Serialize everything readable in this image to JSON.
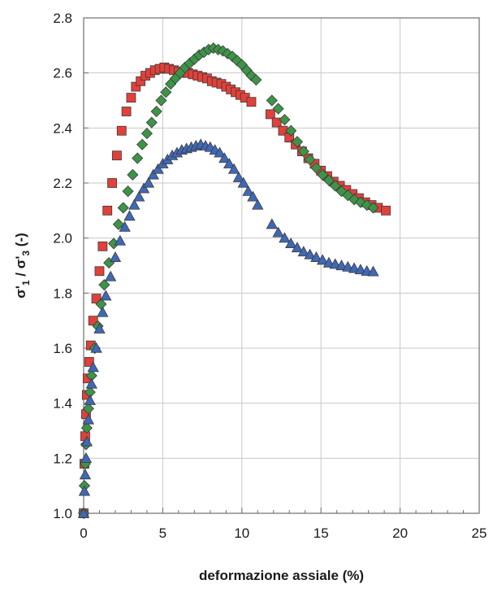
{
  "chart_data": {
    "type": "scatter",
    "title": "",
    "xlabel": "deformazione assiale (%)",
    "ylabel_parts": [
      "σ'",
      "1",
      " / σ'",
      "3",
      " (-)"
    ],
    "xlim": [
      0,
      25
    ],
    "ylim": [
      1.0,
      2.8
    ],
    "x_ticks": [
      0,
      5,
      10,
      15,
      20,
      25
    ],
    "x_tick_labels": [
      "0",
      "5",
      "10",
      "15",
      "20",
      "25"
    ],
    "y_ticks": [
      1.0,
      1.2,
      1.4,
      1.6,
      1.8,
      2.0,
      2.2,
      2.4,
      2.6,
      2.8
    ],
    "y_tick_labels": [
      "1.0",
      "1.2",
      "1.4",
      "1.6",
      "1.8",
      "2.0",
      "2.2",
      "2.4",
      "2.6",
      "2.8"
    ],
    "grid": true,
    "legend": "none",
    "series": [
      {
        "marker": "square",
        "color": "#e2403a",
        "x": [
          0.0,
          0.05,
          0.1,
          0.15,
          0.2,
          0.25,
          0.35,
          0.45,
          0.6,
          0.8,
          1.0,
          1.2,
          1.5,
          1.8,
          2.1,
          2.4,
          2.7,
          3.0,
          3.3,
          3.6,
          3.9,
          4.2,
          4.5,
          4.8,
          5.1,
          5.4,
          5.7,
          6.0,
          6.3,
          6.6,
          6.9,
          7.2,
          7.5,
          7.8,
          8.1,
          8.4,
          8.7,
          9.0,
          9.3,
          9.6,
          9.9,
          10.2,
          10.6,
          11.8,
          12.2,
          12.6,
          13.0,
          13.4,
          13.8,
          14.2,
          14.6,
          15.0,
          15.4,
          15.8,
          16.2,
          16.6,
          17.0,
          17.4,
          17.8,
          18.2,
          18.6,
          19.1
        ],
        "y": [
          1.0,
          1.18,
          1.28,
          1.36,
          1.43,
          1.49,
          1.55,
          1.61,
          1.7,
          1.78,
          1.88,
          1.97,
          2.1,
          2.2,
          2.3,
          2.39,
          2.46,
          2.51,
          2.55,
          2.57,
          2.59,
          2.6,
          2.61,
          2.615,
          2.62,
          2.615,
          2.61,
          2.605,
          2.6,
          2.6,
          2.595,
          2.59,
          2.585,
          2.58,
          2.57,
          2.565,
          2.56,
          2.55,
          2.54,
          2.53,
          2.52,
          2.51,
          2.495,
          2.45,
          2.42,
          2.39,
          2.365,
          2.34,
          2.315,
          2.29,
          2.27,
          2.245,
          2.225,
          2.205,
          2.19,
          2.175,
          2.16,
          2.145,
          2.13,
          2.12,
          2.11,
          2.1
        ]
      },
      {
        "marker": "diamond",
        "color": "#3d9448",
        "x": [
          0.0,
          0.05,
          0.1,
          0.15,
          0.2,
          0.3,
          0.4,
          0.5,
          0.7,
          0.9,
          1.1,
          1.3,
          1.6,
          1.9,
          2.2,
          2.5,
          2.8,
          3.1,
          3.4,
          3.7,
          4.0,
          4.3,
          4.6,
          4.9,
          5.2,
          5.5,
          5.8,
          6.1,
          6.4,
          6.7,
          7.0,
          7.3,
          7.6,
          7.9,
          8.2,
          8.5,
          8.8,
          9.1,
          9.4,
          9.7,
          10.0,
          10.3,
          10.6,
          10.9,
          11.9,
          12.3,
          12.7,
          13.1,
          13.5,
          13.9,
          14.3,
          14.7,
          15.1,
          15.5,
          15.9,
          16.3,
          16.7,
          17.1,
          17.5,
          17.9,
          18.3
        ],
        "y": [
          1.0,
          1.1,
          1.18,
          1.25,
          1.31,
          1.38,
          1.44,
          1.5,
          1.6,
          1.68,
          1.76,
          1.83,
          1.91,
          1.98,
          2.05,
          2.11,
          2.17,
          2.23,
          2.29,
          2.34,
          2.38,
          2.42,
          2.46,
          2.5,
          2.53,
          2.56,
          2.58,
          2.6,
          2.62,
          2.635,
          2.65,
          2.665,
          2.675,
          2.685,
          2.69,
          2.685,
          2.68,
          2.67,
          2.66,
          2.645,
          2.63,
          2.61,
          2.59,
          2.575,
          2.5,
          2.47,
          2.43,
          2.39,
          2.35,
          2.315,
          2.285,
          2.255,
          2.23,
          2.21,
          2.19,
          2.17,
          2.155,
          2.14,
          2.13,
          2.12,
          2.11
        ]
      },
      {
        "marker": "triangle",
        "color": "#3f68b5",
        "x": [
          0.0,
          0.05,
          0.1,
          0.15,
          0.2,
          0.3,
          0.4,
          0.5,
          0.6,
          0.8,
          1.0,
          1.2,
          1.4,
          1.7,
          2.0,
          2.3,
          2.6,
          2.9,
          3.2,
          3.5,
          3.8,
          4.1,
          4.4,
          4.7,
          5.0,
          5.3,
          5.6,
          5.9,
          6.2,
          6.5,
          6.8,
          7.1,
          7.4,
          7.7,
          8.0,
          8.3,
          8.6,
          8.9,
          9.2,
          9.5,
          9.8,
          10.1,
          10.4,
          10.7,
          11.0,
          11.9,
          12.3,
          12.7,
          13.1,
          13.5,
          13.9,
          14.3,
          14.7,
          15.1,
          15.5,
          15.9,
          16.3,
          16.7,
          17.1,
          17.5,
          17.9,
          18.3
        ],
        "y": [
          1.0,
          1.08,
          1.14,
          1.2,
          1.26,
          1.34,
          1.41,
          1.47,
          1.53,
          1.6,
          1.67,
          1.73,
          1.79,
          1.86,
          1.93,
          1.99,
          2.04,
          2.08,
          2.12,
          2.15,
          2.18,
          2.2,
          2.23,
          2.25,
          2.27,
          2.285,
          2.3,
          2.31,
          2.32,
          2.325,
          2.33,
          2.335,
          2.34,
          2.335,
          2.33,
          2.32,
          2.31,
          2.29,
          2.27,
          2.25,
          2.22,
          2.2,
          2.17,
          2.15,
          2.12,
          2.05,
          2.02,
          2.0,
          1.98,
          1.965,
          1.95,
          1.94,
          1.93,
          1.92,
          1.91,
          1.905,
          1.9,
          1.895,
          1.89,
          1.885,
          1.88,
          1.878
        ]
      }
    ]
  }
}
